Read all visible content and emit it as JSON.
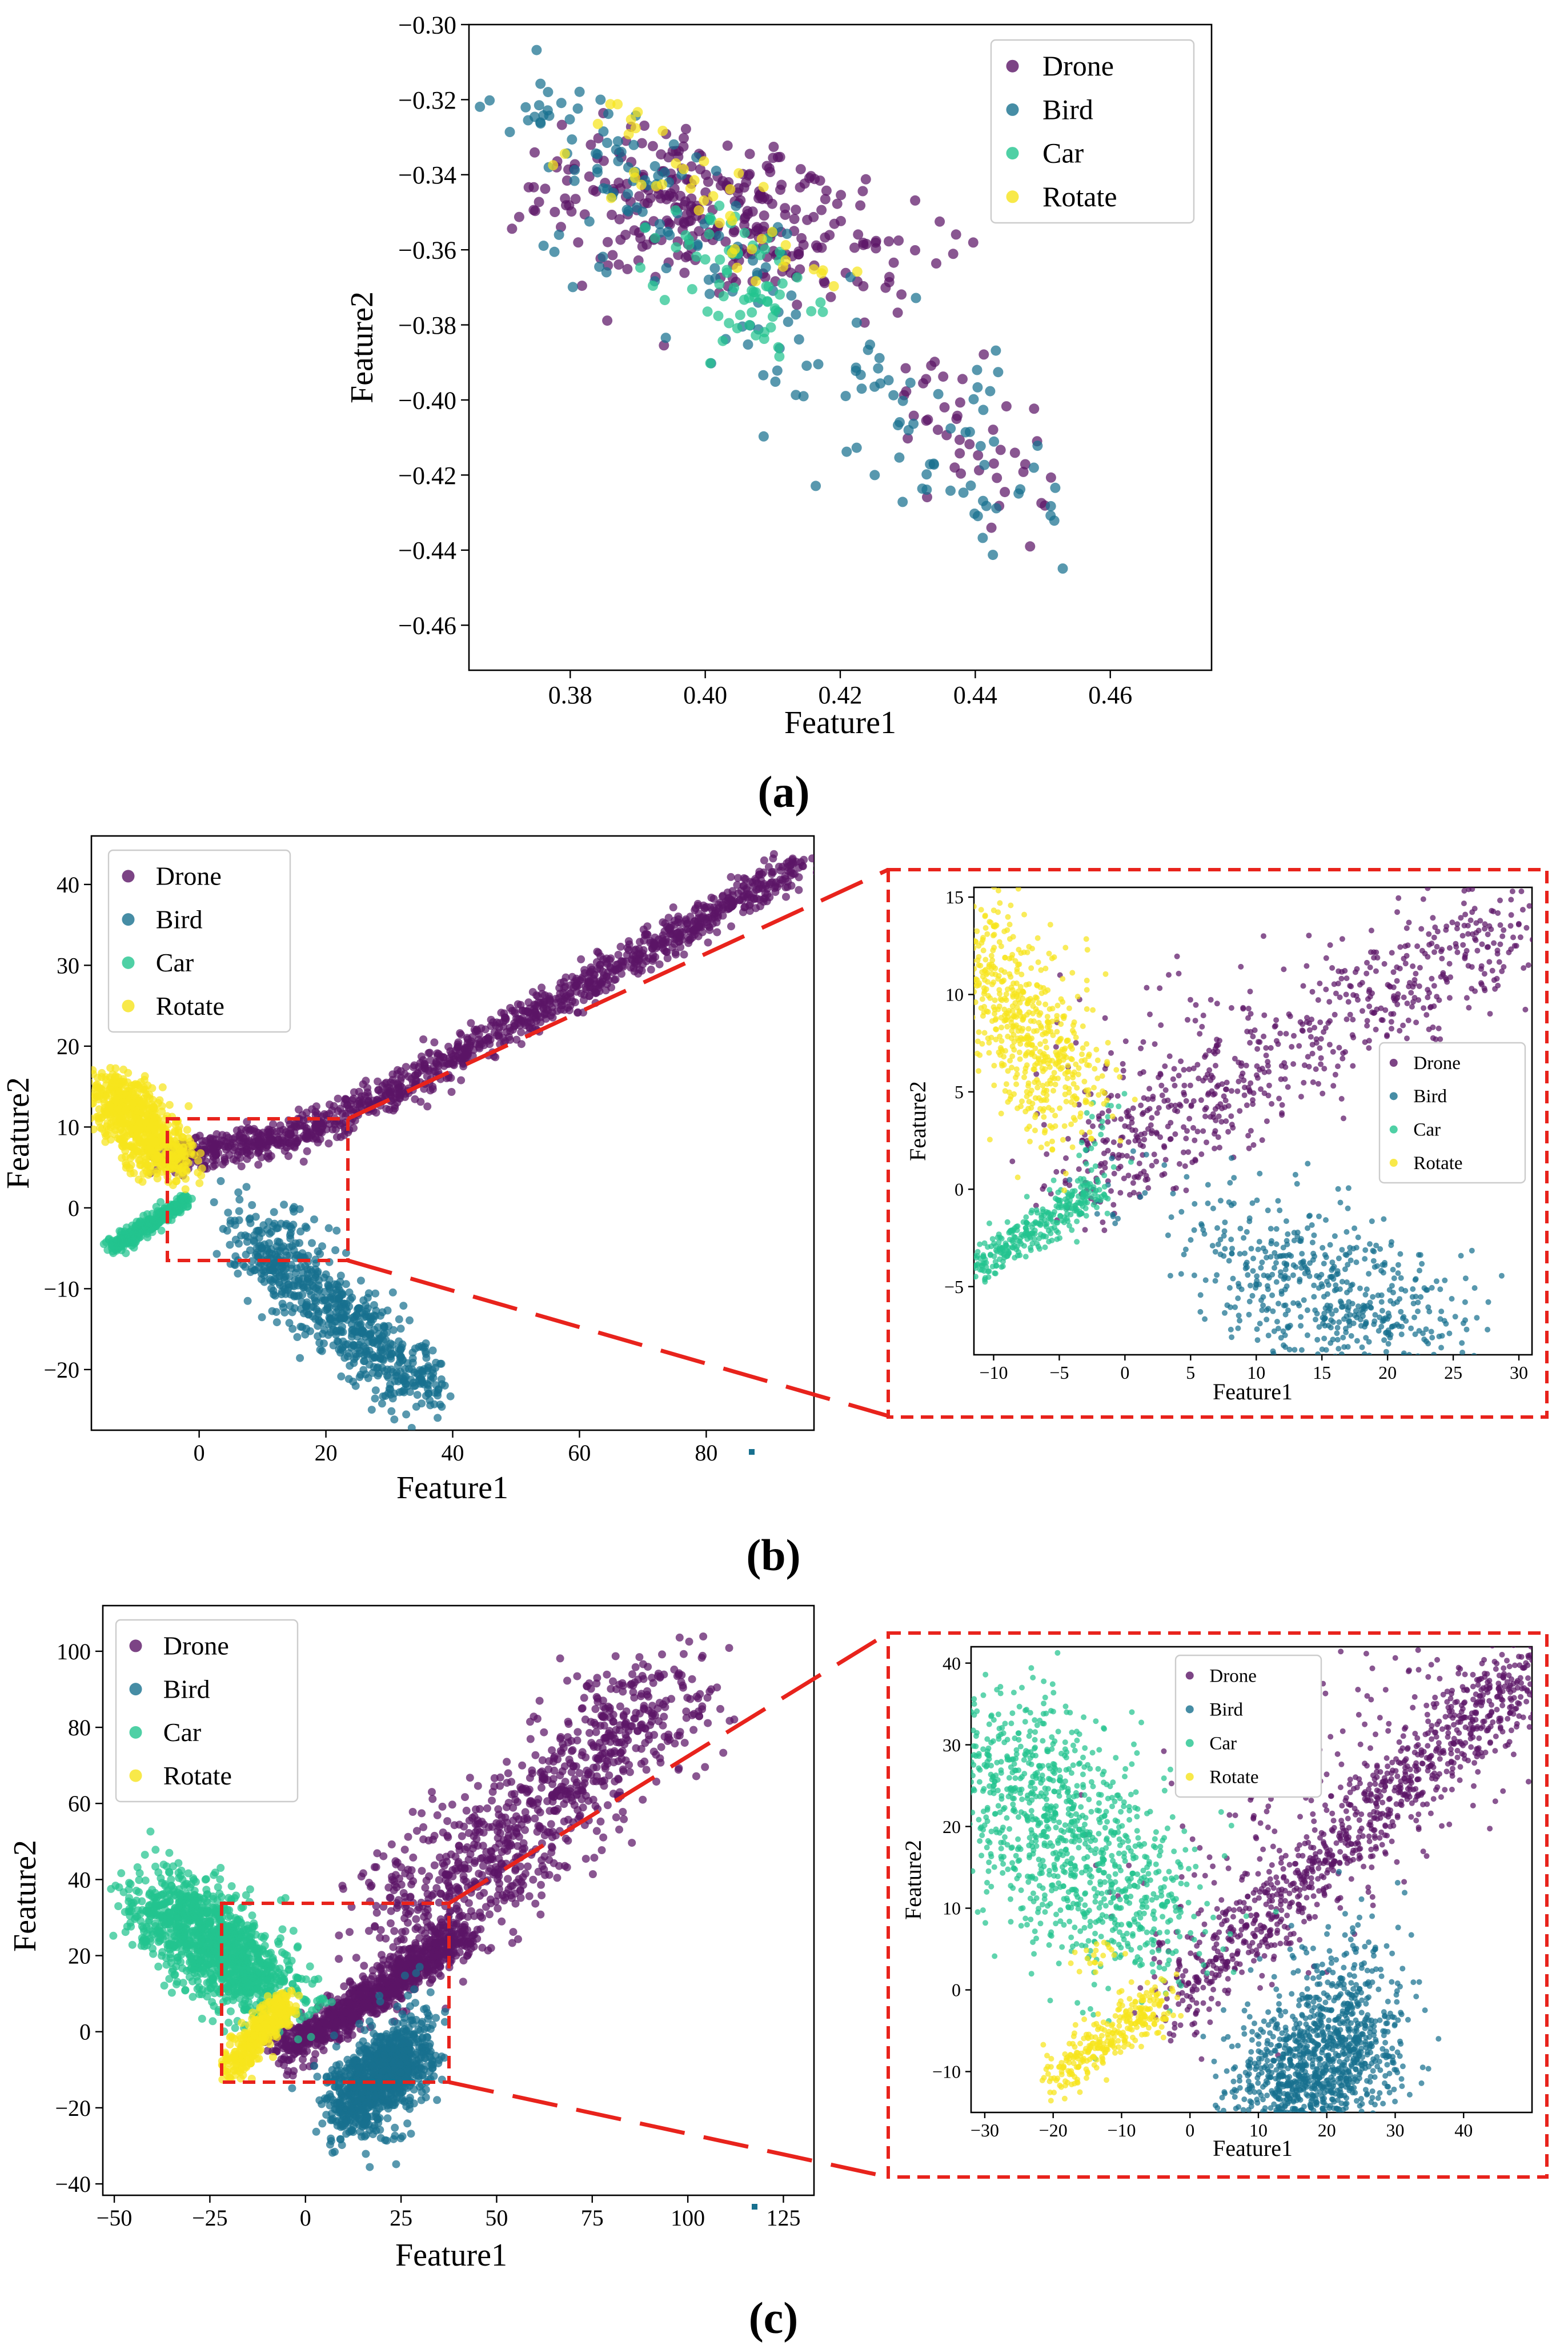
{
  "figure": {
    "captions": [
      "(a)",
      "(b)",
      "(c)"
    ]
  },
  "colors": {
    "Drone": "#5b1566",
    "Bird": "#18708f",
    "Car": "#23c48f",
    "Rotate": "#f6e41c",
    "zoom": "#e8231c"
  },
  "chart_data": [
    {
      "id": "a",
      "type": "scatter",
      "title": "",
      "xlabel": "Feature1",
      "ylabel": "Feature2",
      "xlim": [
        0.365,
        0.475
      ],
      "ylim": [
        -0.472,
        -0.3
      ],
      "xticks": [
        0.38,
        0.4,
        0.42,
        0.44,
        0.46
      ],
      "xtick_labels": [
        "0.38",
        "0.40",
        "0.42",
        "0.44",
        "0.46"
      ],
      "yticks": [
        -0.3,
        -0.32,
        -0.34,
        -0.36,
        -0.38,
        -0.4,
        -0.42,
        -0.44,
        -0.46
      ],
      "ytick_labels": [
        "−0.30",
        "−0.32",
        "−0.34",
        "−0.36",
        "−0.38",
        "−0.40",
        "−0.42",
        "−0.44",
        "−0.46"
      ],
      "legend": [
        "Drone",
        "Bird",
        "Car",
        "Rotate"
      ],
      "legend_loc": "upper right",
      "series": [
        {
          "name": "Drone",
          "clusters": [
            [
              0.392,
              -0.335,
              0.412,
              -0.366,
              0.012,
              0.006,
              320
            ],
            [
              0.43,
              -0.39,
              0.448,
              -0.43,
              0.005,
              0.005,
              45
            ]
          ]
        },
        {
          "name": "Bird",
          "clusters": [
            [
              0.37,
              -0.312,
              0.392,
              -0.345,
              0.005,
              0.006,
              50
            ],
            [
              0.39,
              -0.34,
              0.446,
              -0.438,
              0.008,
              0.008,
              140
            ]
          ]
        },
        {
          "name": "Car",
          "clusters": [
            [
              0.398,
              -0.35,
              0.41,
              -0.385,
              0.005,
              0.005,
              70
            ]
          ]
        },
        {
          "name": "Rotate",
          "clusters": [
            [
              0.383,
              -0.326,
              0.418,
              -0.372,
              0.004,
              0.004,
              45
            ]
          ]
        }
      ]
    },
    {
      "id": "b",
      "type": "scatter",
      "title": "",
      "xlabel": "Feature1",
      "ylabel": "Feature2",
      "xlim": [
        -17,
        97
      ],
      "ylim": [
        -27.5,
        46
      ],
      "xticks": [
        0,
        20,
        40,
        60,
        80
      ],
      "xtick_labels": [
        "0",
        "20",
        "40",
        "60",
        "80"
      ],
      "yticks": [
        -20,
        -10,
        0,
        10,
        20,
        30,
        40
      ],
      "ytick_labels": [
        "−20",
        "−10",
        "0",
        "10",
        "20",
        "30",
        "40"
      ],
      "legend": [
        "Drone",
        "Bird",
        "Car",
        "Rotate"
      ],
      "legend_loc": "upper left",
      "zoom_region": {
        "x": [
          -7,
          22.5
        ],
        "y": [
          -6,
          11
        ]
      },
      "series": [
        {
          "name": "Drone",
          "clusters": [
            [
              -5,
              6,
              20,
              10,
              2,
              1.1,
              350
            ],
            [
              20,
              10,
              95,
              42.5,
              2,
              0.9,
              900
            ]
          ]
        },
        {
          "name": "Bird",
          "clusters": [
            [
              8,
              -4,
              36,
              -23,
              3,
              2.2,
              650
            ],
            [
              4,
              0,
              20,
              -4,
              2,
              1.5,
              40
            ]
          ]
        },
        {
          "name": "Car",
          "clusters": [
            [
              -14,
              -5,
              -2,
              1,
              0.6,
              0.5,
              300
            ]
          ]
        },
        {
          "name": "Rotate",
          "clusters": [
            [
              -14,
              15,
              -4,
              5,
              2.5,
              1.5,
              700
            ]
          ]
        }
      ]
    },
    {
      "id": "b-zoom",
      "type": "scatter",
      "title": "",
      "xlabel": "Feature1",
      "ylabel": "Feature2",
      "xlim": [
        -11.5,
        31
      ],
      "ylim": [
        -8.5,
        15.5
      ],
      "xticks": [
        -10,
        -5,
        0,
        5,
        10,
        15,
        20,
        25,
        30
      ],
      "xtick_labels": [
        "−10",
        "−5",
        "0",
        "5",
        "10",
        "15",
        "20",
        "25",
        "30"
      ],
      "yticks": [
        -5,
        0,
        5,
        10,
        15
      ],
      "ytick_labels": [
        "−5",
        "0",
        "5",
        "10",
        "15"
      ],
      "legend": [
        "Drone",
        "Bird",
        "Car",
        "Rotate"
      ],
      "legend_loc": "center right",
      "series": [
        {
          "name": "Drone",
          "clusters": [
            [
              -4,
              0.5,
              30,
              14,
              2.2,
              1.6,
              650
            ],
            [
              -3,
              5,
              10,
              8,
              3,
              2.5,
              80
            ]
          ]
        },
        {
          "name": "Bird",
          "clusters": [
            [
              9,
              -3,
              24,
              -8,
              3,
              2,
              550
            ],
            [
              -3,
              0,
              8,
              -1,
              2,
              1.5,
              30
            ]
          ]
        },
        {
          "name": "Car",
          "clusters": [
            [
              -11.5,
              -4,
              -2,
              0,
              0.5,
              0.5,
              300
            ],
            [
              -3,
              0,
              -1,
              4,
              1,
              1,
              30
            ]
          ]
        },
        {
          "name": "Rotate",
          "clusters": [
            [
              -11,
              13,
              -4,
              4,
              2,
              1.5,
              600
            ]
          ]
        }
      ]
    },
    {
      "id": "c",
      "type": "scatter",
      "title": "",
      "xlabel": "Feature1",
      "ylabel": "Feature2",
      "xlim": [
        -53,
        133
      ],
      "ylim": [
        -43,
        112
      ],
      "xticks": [
        -50,
        -25,
        0,
        25,
        50,
        75,
        100,
        125
      ],
      "xtick_labels": [
        "−50",
        "−25",
        "0",
        "25",
        "50",
        "75",
        "100",
        "125"
      ],
      "yticks": [
        -40,
        -20,
        0,
        20,
        40,
        60,
        80,
        100
      ],
      "ytick_labels": [
        "−40",
        "−20",
        "0",
        "20",
        "40",
        "60",
        "80",
        "100"
      ],
      "legend": [
        "Drone",
        "Bird",
        "Car",
        "Rotate"
      ],
      "legend_loc": "upper left",
      "zoom_region": {
        "x": [
          -25,
          34
        ],
        "y": [
          -20,
          27
        ]
      },
      "series": [
        {
          "name": "Drone",
          "clusters": [
            [
              -5,
              -5,
              40,
              25,
              3,
              2.5,
              900
            ],
            [
              25,
              25,
              95,
              90,
              9,
              9,
              900
            ]
          ]
        },
        {
          "name": "Bird",
          "clusters": [
            [
              10,
              -20,
              28,
              -5,
              4,
              5,
              900
            ],
            [
              18,
              -30,
              30,
              8,
              5,
              6,
              80
            ]
          ]
        },
        {
          "name": "Car",
          "clusters": [
            [
              -40,
              35,
              -10,
              12,
              6,
              6,
              1100
            ],
            [
              -20,
              20,
              0,
              5,
              5,
              5,
              100
            ]
          ]
        },
        {
          "name": "Rotate",
          "clusters": [
            [
              -20,
              -10,
              -5,
              8,
              2,
              2,
              350
            ]
          ]
        }
      ]
    },
    {
      "id": "c-zoom",
      "type": "scatter",
      "title": "",
      "xlabel": "Feature1",
      "ylabel": "Feature2",
      "xlim": [
        -32,
        50
      ],
      "ylim": [
        -15,
        42
      ],
      "xticks": [
        -30,
        -20,
        -10,
        0,
        10,
        20,
        30,
        40
      ],
      "xtick_labels": [
        "−30",
        "−20",
        "−10",
        "0",
        "10",
        "20",
        "30",
        "40"
      ],
      "yticks": [
        -10,
        0,
        10,
        20,
        30,
        40
      ],
      "ytick_labels": [
        "−10",
        "0",
        "10",
        "20",
        "30",
        "40"
      ],
      "legend": [
        "Drone",
        "Bird",
        "Car",
        "Rotate"
      ],
      "legend_loc": "upper center",
      "series": [
        {
          "name": "Drone",
          "clusters": [
            [
              -3,
              -2,
              50,
              40,
              2.5,
              2.5,
              900
            ],
            [
              0,
              10,
              48,
              42,
              8,
              8,
              300
            ]
          ]
        },
        {
          "name": "Bird",
          "clusters": [
            [
              10,
              -15,
              26,
              -5,
              4,
              5,
              1100
            ],
            [
              12,
              -10,
              28,
              4,
              4,
              5,
              150
            ]
          ]
        },
        {
          "name": "Car",
          "clusters": [
            [
              -32,
              30,
              -8,
              10,
              6,
              6,
              1000
            ],
            [
              -12,
              15,
              0,
              3,
              4,
              4,
              80
            ]
          ]
        },
        {
          "name": "Rotate",
          "clusters": [
            [
              -20,
              -11,
              -4,
              -1,
              1.5,
              1.5,
              300
            ],
            [
              -15,
              3,
              -12,
              5,
              2,
              1,
              20
            ]
          ]
        }
      ]
    }
  ]
}
